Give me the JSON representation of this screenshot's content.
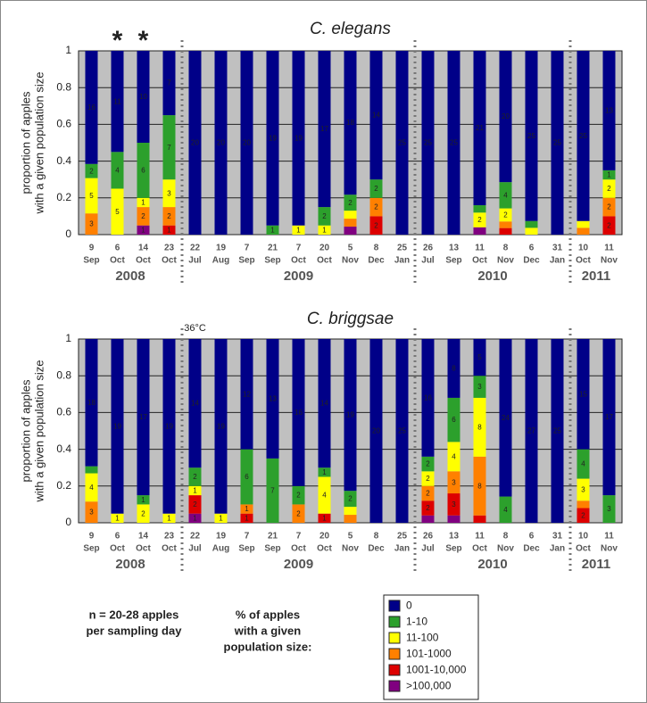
{
  "chart_data": [
    {
      "type": "bar",
      "stacked": "percent",
      "title": "C. elegans",
      "ylabel": [
        "proportion of apples",
        "with a given population size"
      ],
      "ylim": [
        0,
        1
      ],
      "yticks": [
        0,
        0.2,
        0.4,
        0.6,
        0.8,
        1
      ],
      "grid": true,
      "categories": [
        [
          "9",
          "Sep"
        ],
        [
          "6",
          "Oct"
        ],
        [
          "14",
          "Oct"
        ],
        [
          "23",
          "Oct"
        ],
        [
          "22",
          "Jul"
        ],
        [
          "19",
          "Aug"
        ],
        [
          "7",
          "Sep"
        ],
        [
          "21",
          "Sep"
        ],
        [
          "7",
          "Oct"
        ],
        [
          "20",
          "Oct"
        ],
        [
          "5",
          "Nov"
        ],
        [
          "8",
          "Dec"
        ],
        [
          "25",
          "Jan"
        ],
        [
          "26",
          "Jul"
        ],
        [
          "13",
          "Sep"
        ],
        [
          "11",
          "Oct"
        ],
        [
          "8",
          "Nov"
        ],
        [
          "6",
          "Dec"
        ],
        [
          "31",
          "Jan"
        ],
        [
          "10",
          "Oct"
        ],
        [
          "11",
          "Nov"
        ]
      ],
      "year_groups": [
        {
          "label": "2008",
          "from": 0,
          "to": 3
        },
        {
          "label": "2009",
          "from": 4,
          "to": 12
        },
        {
          "label": "2010",
          "from": 13,
          "to": 18
        },
        {
          "label": "2011",
          "from": 19,
          "to": 20
        }
      ],
      "annotations": [
        {
          "text": "*",
          "category": 1
        },
        {
          "text": "*",
          "category": 2
        }
      ],
      "series": [
        {
          "name": "0",
          "color": "#000088",
          "values": [
            16,
            11,
            10,
            7,
            20,
            20,
            20,
            19,
            19,
            17,
            18,
            14,
            25,
            25,
            25,
            21,
            20,
            25,
            25,
            25,
            13
          ]
        },
        {
          "name": "1-10",
          "color": "#2ca02c",
          "values": [
            2,
            4,
            6,
            7,
            null,
            null,
            null,
            1,
            null,
            2,
            2,
            2,
            null,
            null,
            null,
            1,
            4,
            1,
            null,
            null,
            1
          ]
        },
        {
          "name": "11-100",
          "color": "#ffff00",
          "values": [
            5,
            5,
            1,
            3,
            null,
            null,
            null,
            null,
            1,
            1,
            1,
            null,
            null,
            null,
            null,
            2,
            2,
            1,
            null,
            1,
            2
          ]
        },
        {
          "name": "101-1000",
          "color": "#ff8000",
          "values": [
            3,
            null,
            2,
            2,
            null,
            null,
            null,
            null,
            null,
            null,
            1,
            2,
            null,
            null,
            null,
            null,
            1,
            null,
            null,
            1,
            2
          ]
        },
        {
          "name": "1001-10,000",
          "color": "#dd0000",
          "values": [
            null,
            null,
            null,
            1,
            null,
            null,
            null,
            null,
            null,
            null,
            null,
            2,
            null,
            null,
            null,
            null,
            1,
            null,
            null,
            null,
            2
          ]
        },
        {
          "name": ">100,000",
          "color": "#800080",
          "values": [
            null,
            null,
            1,
            null,
            null,
            null,
            null,
            null,
            null,
            null,
            1,
            null,
            null,
            null,
            null,
            1,
            null,
            null,
            null,
            null,
            null
          ]
        }
      ]
    },
    {
      "type": "bar",
      "stacked": "percent",
      "title": "C. briggsae",
      "ylabel": [
        "proportion of apples",
        "with a given population size"
      ],
      "ylim": [
        0,
        1
      ],
      "yticks": [
        0,
        0.2,
        0.4,
        0.6,
        0.8,
        1
      ],
      "grid": true,
      "categories": [
        [
          "9",
          "Sep"
        ],
        [
          "6",
          "Oct"
        ],
        [
          "14",
          "Oct"
        ],
        [
          "23",
          "Oct"
        ],
        [
          "22",
          "Jul"
        ],
        [
          "19",
          "Aug"
        ],
        [
          "7",
          "Sep"
        ],
        [
          "21",
          "Sep"
        ],
        [
          "7",
          "Oct"
        ],
        [
          "20",
          "Oct"
        ],
        [
          "5",
          "Nov"
        ],
        [
          "8",
          "Dec"
        ],
        [
          "25",
          "Jan"
        ],
        [
          "26",
          "Jul"
        ],
        [
          "13",
          "Sep"
        ],
        [
          "11",
          "Oct"
        ],
        [
          "8",
          "Nov"
        ],
        [
          "6",
          "Dec"
        ],
        [
          "31",
          "Jan"
        ],
        [
          "10",
          "Oct"
        ],
        [
          "11",
          "Nov"
        ]
      ],
      "year_groups": [
        {
          "label": "2008",
          "from": 0,
          "to": 3
        },
        {
          "label": "2009",
          "from": 4,
          "to": 12
        },
        {
          "label": "2010",
          "from": 13,
          "to": 18
        },
        {
          "label": "2011",
          "from": 19,
          "to": 20
        }
      ],
      "annotations": [
        {
          "text": "36°C",
          "category": 4
        }
      ],
      "series": [
        {
          "name": "0",
          "color": "#000088",
          "values": [
            18,
            19,
            17,
            19,
            14,
            19,
            12,
            13,
            16,
            14,
            19,
            20,
            25,
            16,
            8,
            5,
            24,
            27,
            25,
            15,
            17
          ]
        },
        {
          "name": "1-10",
          "color": "#2ca02c",
          "values": [
            1,
            null,
            1,
            null,
            2,
            null,
            6,
            7,
            2,
            1,
            2,
            null,
            null,
            2,
            6,
            3,
            4,
            null,
            null,
            4,
            3
          ]
        },
        {
          "name": "11-100",
          "color": "#ffff00",
          "values": [
            4,
            1,
            2,
            1,
            1,
            1,
            null,
            null,
            null,
            4,
            1,
            null,
            null,
            2,
            4,
            8,
            null,
            null,
            null,
            3,
            null
          ]
        },
        {
          "name": "101-1000",
          "color": "#ff8000",
          "values": [
            3,
            null,
            null,
            null,
            null,
            null,
            1,
            null,
            2,
            null,
            1,
            null,
            null,
            2,
            3,
            8,
            null,
            null,
            null,
            1,
            null
          ]
        },
        {
          "name": "1001-10,000",
          "color": "#dd0000",
          "values": [
            null,
            null,
            null,
            null,
            2,
            null,
            1,
            null,
            null,
            1,
            null,
            null,
            null,
            2,
            3,
            1,
            null,
            null,
            null,
            2,
            null
          ]
        },
        {
          "name": ">100,000",
          "color": "#800080",
          "values": [
            null,
            null,
            null,
            null,
            1,
            null,
            null,
            null,
            null,
            null,
            null,
            null,
            null,
            1,
            1,
            null,
            null,
            null,
            null,
            null,
            null
          ]
        }
      ]
    }
  ],
  "notes": {
    "sample_size": [
      "n = 20-28 apples",
      "per sampling day"
    ],
    "legend_title": [
      "% of apples",
      "with a given",
      "population size:"
    ]
  }
}
